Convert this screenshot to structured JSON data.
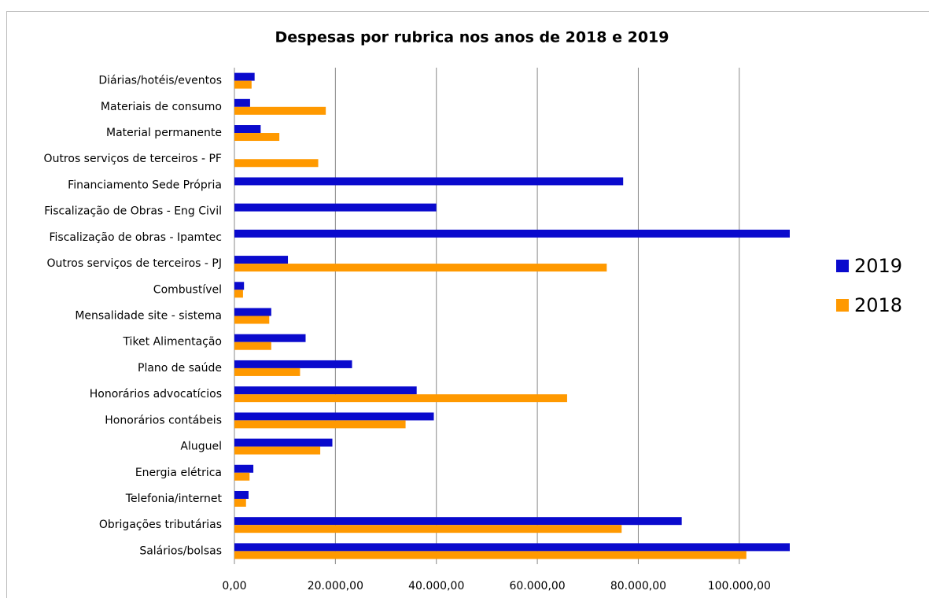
{
  "chart_data": {
    "type": "barh",
    "title": "Despesas por rubrica nos anos de 2018 e 2019",
    "categories": [
      "Diárias/hotéis/eventos",
      "Materiais de consumo",
      "Material permanente",
      "Outros serviços de terceiros - PF",
      "Financiamento Sede Própria",
      "Fiscalização de Obras - Eng Civil",
      "Fiscalização de obras - Ipamtec",
      "Outros serviços de terceiros - PJ",
      "Combustível",
      "Mensalidade site - sistema",
      "Tiket Alimentação",
      "Plano de saúde",
      "Honorários advocatícios",
      "Honorários contábeis",
      "Aluguel",
      "Energia elétrica",
      "Telefonia/internet",
      "Obrigações tributárias",
      "Salários/bolsas"
    ],
    "series": [
      {
        "name": "2019",
        "color": "#0a0acd",
        "values": [
          4000,
          3100,
          5200,
          null,
          77000,
          40000,
          110000,
          10600,
          1900,
          7300,
          14100,
          23300,
          36100,
          39500,
          19400,
          3750,
          2800,
          88600,
          110000
        ]
      },
      {
        "name": "2018",
        "color": "#ff9900",
        "values": [
          3400,
          18100,
          8900,
          16600,
          null,
          null,
          null,
          73750,
          1700,
          6900,
          7300,
          13000,
          65900,
          33900,
          17000,
          3000,
          2300,
          76700,
          101400
        ]
      }
    ],
    "xlim": [
      0,
      110000
    ],
    "xticks": [
      {
        "value": 0,
        "label": "0,00"
      },
      {
        "value": 20000,
        "label": "20.000,00"
      },
      {
        "value": 40000,
        "label": "40.000,00"
      },
      {
        "value": 60000,
        "label": "60.000,00"
      },
      {
        "value": 80000,
        "label": "80.000,00"
      },
      {
        "value": 100000,
        "label": "100.000,00"
      }
    ],
    "grid": true,
    "legend": "right"
  }
}
